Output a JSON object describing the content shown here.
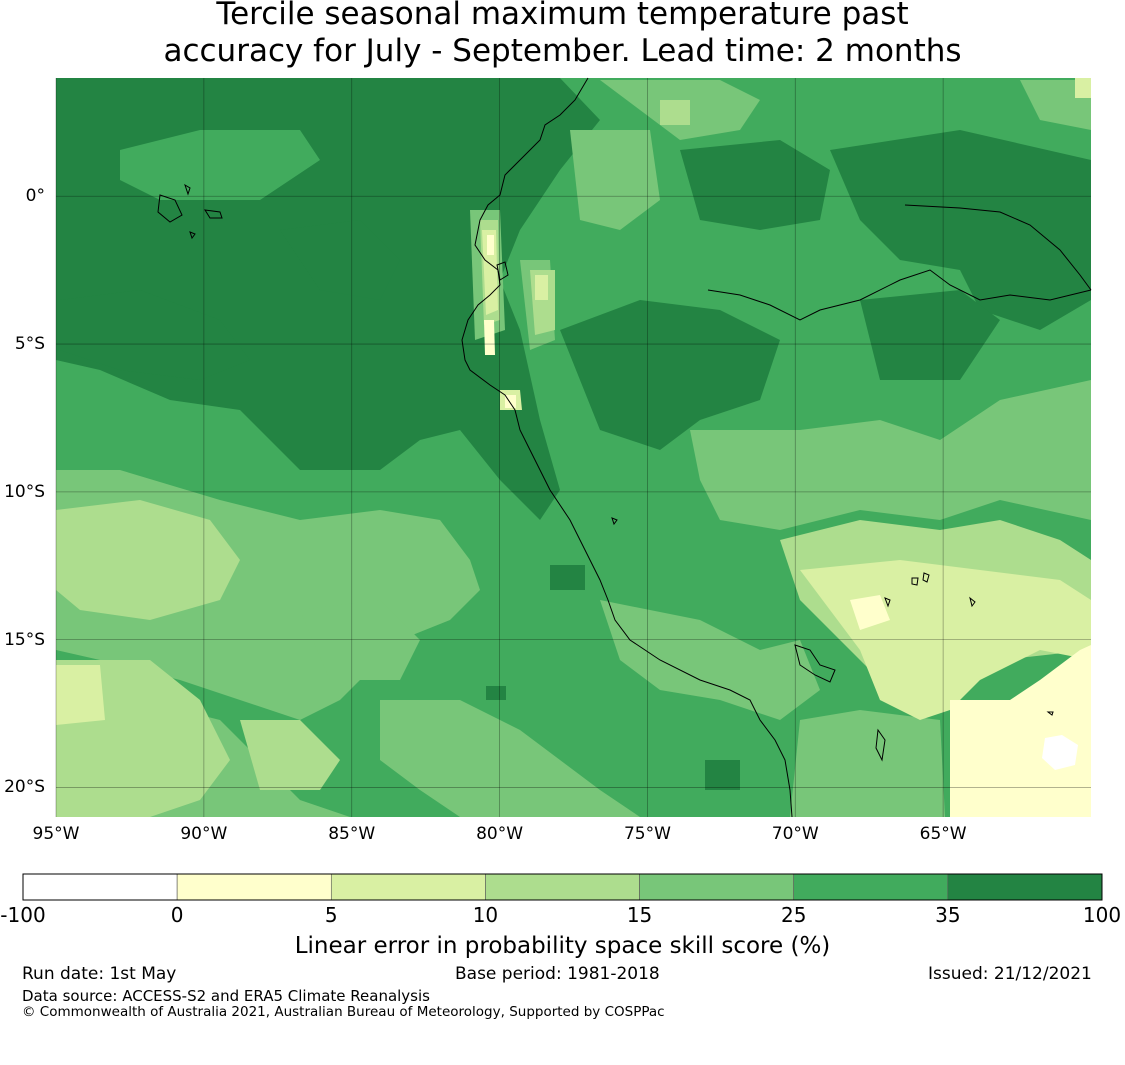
{
  "title": {
    "line1": "Tercile seasonal maximum temperature past",
    "line2": "accuracy for July - September. Lead time: 2 months"
  },
  "axes": {
    "lon_labels": [
      "95°W",
      "90°W",
      "85°W",
      "80°W",
      "75°W",
      "70°W",
      "65°W"
    ],
    "lon_values": [
      -95,
      -90,
      -85,
      -80,
      -75,
      -70,
      -65
    ],
    "lat_labels": [
      "0°",
      "5°S",
      "10°S",
      "15°S",
      "20°S"
    ],
    "lat_values": [
      0,
      -5,
      -10,
      -15,
      -20
    ],
    "lon_range": [
      -95,
      -60
    ],
    "lat_range": [
      -21,
      4
    ]
  },
  "colorbar": {
    "boundaries": [
      "-100",
      "0",
      "5",
      "10",
      "15",
      "25",
      "35",
      "100"
    ],
    "colors": [
      "#ffffff",
      "#ffffcc",
      "#d9f0a3",
      "#addd8e",
      "#78c679",
      "#41ab5d",
      "#238443"
    ],
    "label": "Linear error in probability space skill score (%)"
  },
  "footer": {
    "run_date": "Run date: 1st May",
    "base_period": "Base period: 1981-2018",
    "issued": "Issued: 21/12/2021",
    "data_source": "Data source: ACCESS-S2 and ERA5 Climate Reanalysis",
    "copyright": "© Commonwealth of Australia 2021, Australian Bureau of Meteorology, Supported by COSPPac"
  }
}
